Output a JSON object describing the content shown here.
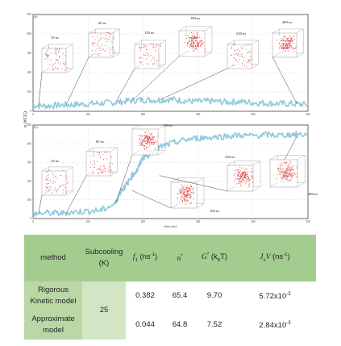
{
  "chart_data": [
    {
      "type": "line",
      "panel_label": "(a)",
      "xlim": [
        0,
        500
      ],
      "ylim": [
        0,
        500
      ],
      "x_ticks": [
        "0",
        "100",
        "200",
        "300",
        "400",
        "500"
      ],
      "y_ticks": [
        "0",
        "100",
        "200",
        "300",
        "400",
        "500"
      ],
      "series": [
        {
          "x": [
            0,
            25,
            50,
            75,
            100,
            125,
            150,
            175,
            200,
            225,
            250,
            275,
            300,
            325,
            350,
            375,
            400,
            425,
            450,
            475,
            500
          ],
          "values": [
            30,
            28,
            32,
            35,
            38,
            42,
            45,
            55,
            60,
            58,
            62,
            55,
            50,
            52,
            48,
            50,
            45,
            42,
            40,
            38,
            35
          ]
        }
      ],
      "snapshots": [
        {
          "label": "10 ns",
          "t": 10
        },
        {
          "label": "60 ns",
          "t": 60
        },
        {
          "label": "150 ns",
          "t": 150
        },
        {
          "label": "180 ns",
          "t": 180
        },
        {
          "label": "230 ns",
          "t": 230
        },
        {
          "label": "480 ns",
          "t": 480
        }
      ]
    },
    {
      "type": "line",
      "panel_label": "(b)",
      "xlabel": "time (ns)",
      "xlim": [
        0,
        500
      ],
      "ylim": [
        0,
        500
      ],
      "x_ticks": [
        "0",
        "100",
        "200",
        "300",
        "400",
        "500"
      ],
      "y_ticks": [
        "0",
        "100",
        "200",
        "300",
        "400",
        "500"
      ],
      "series": [
        {
          "x": [
            0,
            25,
            50,
            75,
            100,
            125,
            150,
            160,
            170,
            180,
            190,
            200,
            210,
            220,
            230,
            250,
            275,
            300,
            325,
            350,
            375,
            400,
            425,
            450,
            475,
            500
          ],
          "values": [
            25,
            30,
            28,
            35,
            40,
            45,
            80,
            150,
            180,
            230,
            260,
            330,
            340,
            360,
            380,
            400,
            420,
            430,
            435,
            440,
            445,
            442,
            448,
            445,
            450,
            448
          ]
        }
      ],
      "snapshots": [
        {
          "label": "10 ns",
          "t": 10
        },
        {
          "label": "60 ns",
          "t": 60
        },
        {
          "label": "150 ns",
          "t": 150
        },
        {
          "label": "180 ns",
          "t": 180
        },
        {
          "label": "230 ns",
          "t": 230
        },
        {
          "label": "480 ns",
          "t": 480
        }
      ]
    },
    {
      "type": "table",
      "headers": {
        "method": "method",
        "subcooling_line1": "Subcooling",
        "subcooling_line2": "(K)",
        "f1_sym": "f",
        "f1_sub": "1",
        "f1_unit": "(ns",
        "f1_exp": "-1",
        "f1_close": ")",
        "n_sym": "n",
        "n_sup": "*",
        "g_sym": "G",
        "g_sup": "*",
        "g_unit": "(k",
        "g_unit_sub": "B",
        "g_unit_T": "T)",
        "j_sym": "J",
        "j_sub": "s",
        "j_v": "V",
        "j_unit": "(ns",
        "j_exp": "-1",
        "j_close": ")"
      },
      "rows": [
        {
          "method_line1": "Rigorous",
          "method_line2": "Kinetic model",
          "subcooling": "25",
          "f1": "0.382",
          "n": "65.4",
          "g": "9.70",
          "j_mant": "5.72x10",
          "j_exp": "-3"
        },
        {
          "method_line1": "Approximate",
          "method_line2": "model",
          "f1": "0.044",
          "n": "64.8",
          "g": "7.52",
          "j_mant": "2.84x10",
          "j_exp": "-3"
        }
      ]
    }
  ],
  "y_axis_label": "n (#CG)",
  "colors": {
    "series": "#8ec9dc",
    "box": "#9a9a9a",
    "particles": "#d9534f",
    "header_bg": "#a4cc8f",
    "method_bg": "#b9d8a6",
    "subcool_bg": "#d2e6c5"
  }
}
